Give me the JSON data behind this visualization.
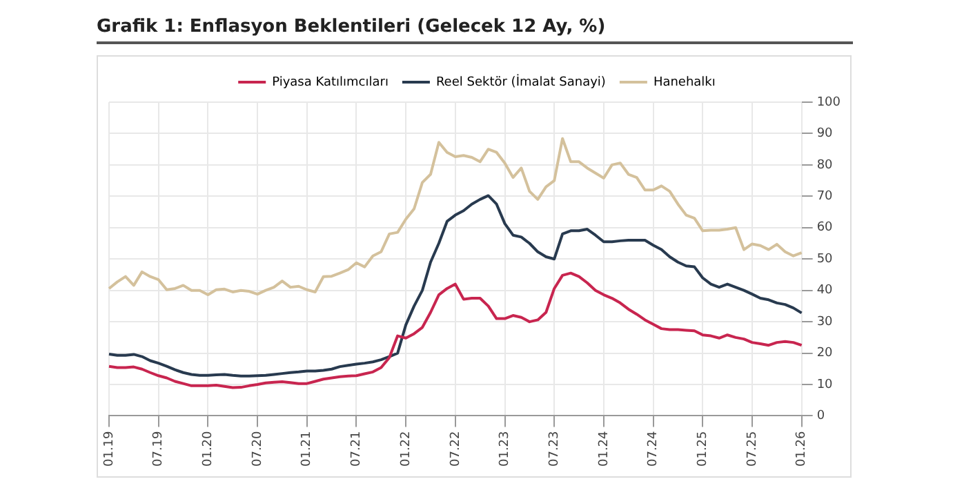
{
  "chart_data": {
    "type": "line",
    "title": "Grafik 1: Enflasyon Beklentileri (Gelecek 12 Ay, %)",
    "categories": [
      "01.19",
      null,
      null,
      null,
      null,
      null,
      "07.19",
      null,
      null,
      null,
      null,
      null,
      "01.20",
      null,
      null,
      null,
      null,
      null,
      "07.20",
      null,
      null,
      null,
      null,
      null,
      "01.21",
      null,
      null,
      null,
      null,
      null,
      "07.21",
      null,
      null,
      null,
      null,
      null,
      "01.22",
      null,
      null,
      null,
      null,
      null,
      "07.22",
      null,
      null,
      null,
      null,
      null,
      "01.23",
      null,
      null,
      null,
      null,
      null,
      "07.23",
      null,
      null,
      null,
      null,
      null,
      "01.24",
      null,
      null,
      null,
      null,
      null,
      "07.24",
      null,
      null,
      null,
      null,
      null,
      "01.25",
      null,
      null,
      null,
      null,
      null,
      "07.25",
      null,
      null,
      null,
      null,
      null,
      "01.26"
    ],
    "series": [
      {
        "name": "Piyasa Katılımcıları",
        "color": "#c8254f",
        "values": [
          15.8,
          15.4,
          15.4,
          15.6,
          14.9,
          13.8,
          12.8,
          12.1,
          11,
          10.3,
          9.6,
          9.6,
          9.6,
          9.8,
          9.4,
          9,
          9.1,
          9.6,
          10,
          10.5,
          10.7,
          10.9,
          10.6,
          10.3,
          10.3,
          11,
          11.7,
          12.1,
          12.5,
          12.7,
          12.8,
          13.4,
          14,
          15.4,
          18.6,
          25.5,
          24.8,
          26.2,
          28.2,
          33,
          38.6,
          40.6,
          42,
          37.2,
          37.5,
          37.5,
          35,
          31,
          31,
          32,
          31.4,
          30,
          30.6,
          33,
          40.6,
          44.8,
          45.5,
          44.4,
          42.4,
          40,
          38.6,
          37.5,
          36,
          34,
          32.4,
          30.6,
          29.2,
          27.8,
          27.5,
          27.5,
          27.3,
          27.1,
          25.8,
          25.5,
          24.8,
          25.8,
          25,
          24.5,
          23.4,
          23,
          22.5,
          23.4,
          23.7,
          23.4,
          22.5
        ]
      },
      {
        "name": "Reel Sektör (İmalat Sanayi)",
        "color": "#283a4f",
        "values": [
          19.7,
          19.3,
          19.3,
          19.6,
          18.9,
          17.6,
          16.8,
          15.8,
          14.7,
          13.8,
          13.2,
          12.9,
          12.9,
          13.1,
          13.2,
          12.9,
          12.7,
          12.7,
          12.8,
          12.9,
          13.2,
          13.5,
          13.8,
          14,
          14.3,
          14.3,
          14.5,
          14.9,
          15.7,
          16.1,
          16.5,
          16.8,
          17.2,
          17.9,
          18.9,
          20,
          29,
          35,
          40,
          49,
          55,
          62,
          64,
          65.4,
          67.5,
          69,
          70.2,
          67.5,
          61.3,
          57.6,
          57,
          55,
          52.3,
          50.7,
          50,
          58,
          59,
          59,
          59.5,
          57.6,
          55.5,
          55.5,
          55.8,
          56,
          56,
          56,
          54.4,
          53,
          50.7,
          49,
          47.8,
          47.5,
          44,
          42,
          41,
          42,
          41,
          40,
          38.8,
          37.5,
          37,
          36,
          35.5,
          34.4,
          32.8
        ]
      },
      {
        "name": "Hanehalkı",
        "color": "#d4c19c",
        "values": [
          40.6,
          42.7,
          44.4,
          41.6,
          45.9,
          44.4,
          43.4,
          40.2,
          40.6,
          41.6,
          40,
          40,
          38.6,
          40.2,
          40.4,
          39.5,
          40,
          39.7,
          38.8,
          40,
          41,
          43,
          41,
          41.3,
          40.2,
          39.5,
          44.4,
          44.5,
          45.5,
          46.6,
          48.8,
          47.5,
          51,
          52.3,
          58,
          58.5,
          62.7,
          66,
          74.4,
          77,
          87.2,
          84,
          82.6,
          83,
          82.4,
          81,
          85,
          84,
          80.6,
          76,
          79,
          71.6,
          69,
          73,
          75,
          88.4,
          81,
          81,
          79,
          77.4,
          75.8,
          80,
          80.6,
          77,
          76,
          72,
          72,
          73.3,
          71.6,
          67.5,
          64,
          63,
          59,
          59.2,
          59.2,
          59.5,
          60,
          53,
          54.8,
          54.3,
          53,
          54.7,
          52.3,
          51,
          52
        ]
      }
    ],
    "ylim": [
      0,
      100
    ],
    "yticks": [
      0,
      10,
      20,
      30,
      40,
      50,
      60,
      70,
      80,
      90,
      100
    ],
    "grid": true,
    "legend": "top",
    "marker": "none",
    "line_style": "solid"
  }
}
